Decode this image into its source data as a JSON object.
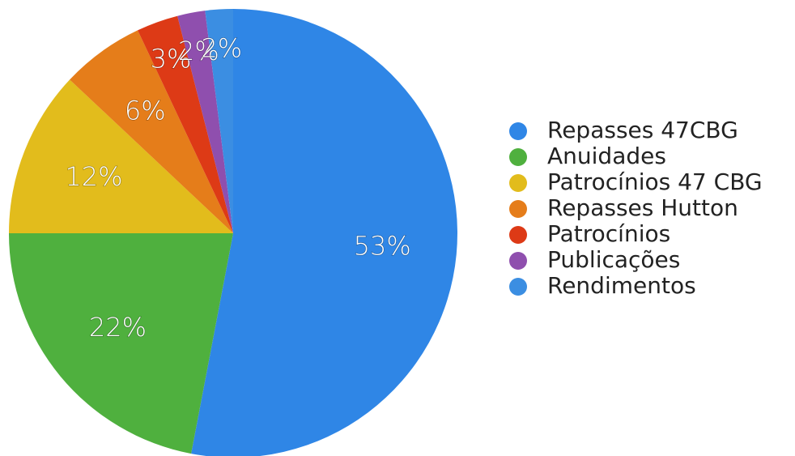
{
  "chart_data": {
    "type": "pie",
    "categories": [
      "Repasses 47CBG",
      "Anuidades",
      "Patrocínios 47 CBG",
      "Repasses Hutton",
      "Patrocínios",
      "Publicações",
      "Rendimentos"
    ],
    "values": [
      53,
      22,
      12,
      6,
      3,
      2,
      2
    ],
    "value_labels": [
      "53%",
      "22%",
      "12%",
      "6%",
      "3%",
      "2%",
      "2%"
    ],
    "colors": [
      "#2f86e6",
      "#4fb03e",
      "#e2bc1c",
      "#e57d1a",
      "#dd3a16",
      "#8f4fae",
      "#3b8ee2"
    ]
  }
}
